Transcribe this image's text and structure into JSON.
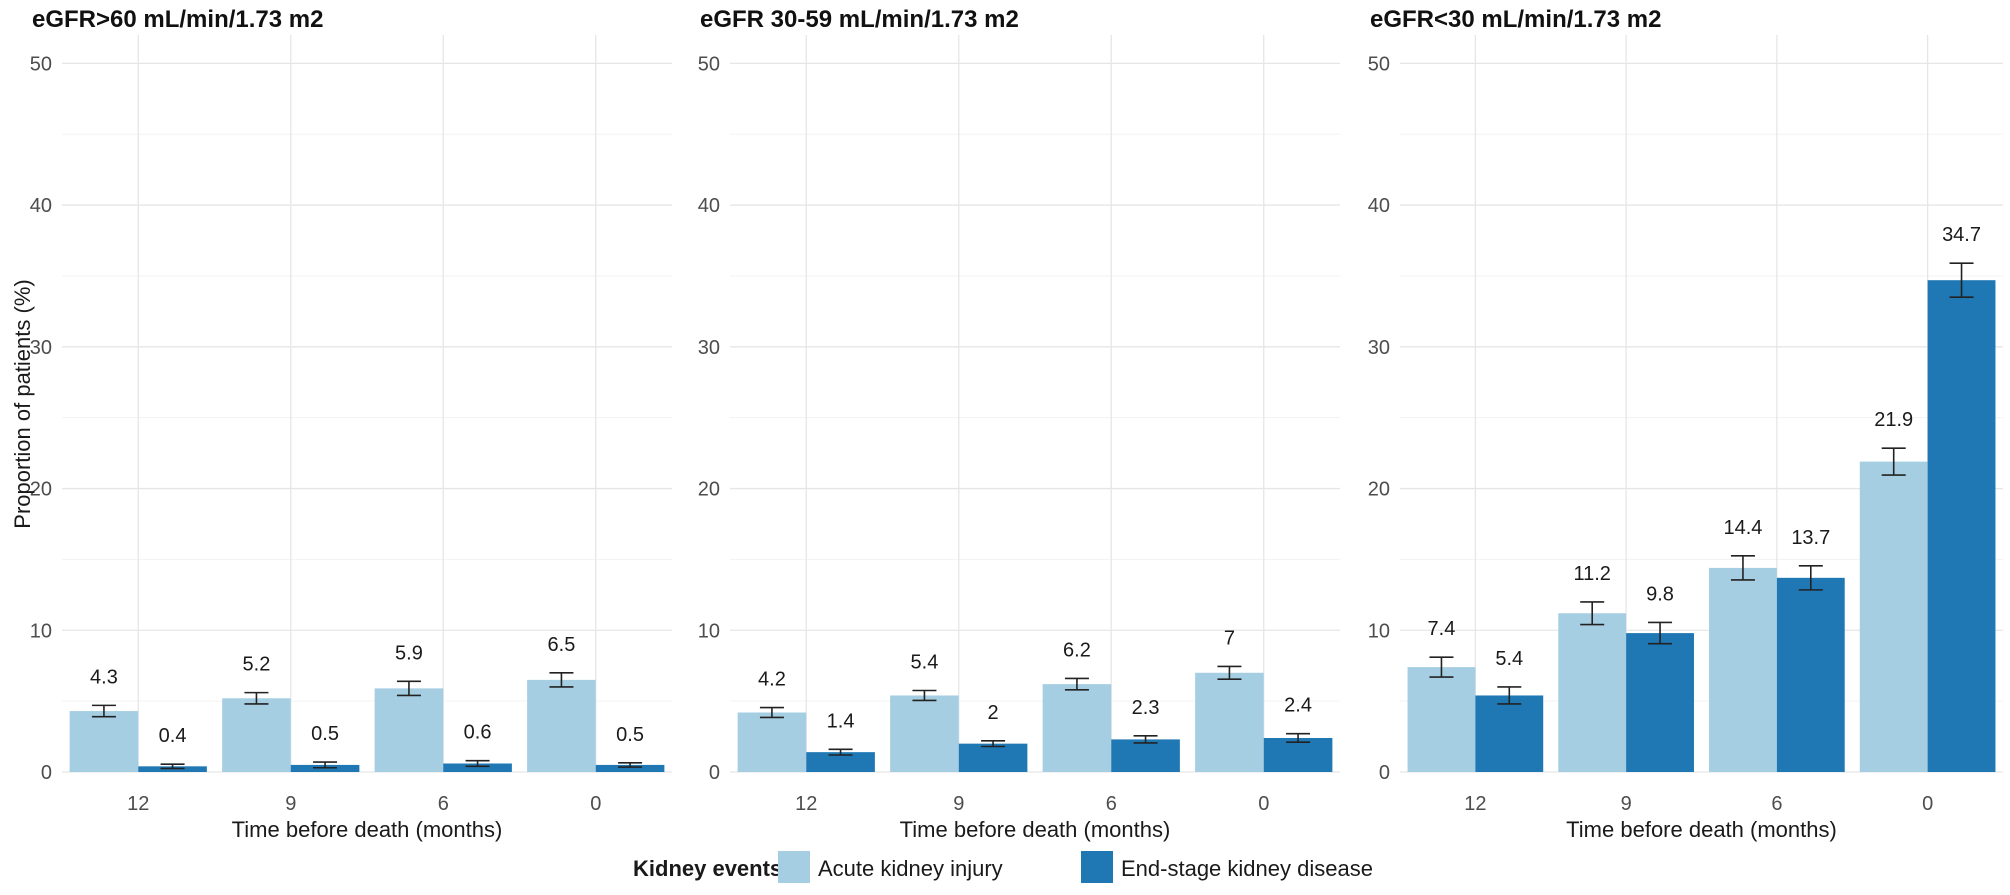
{
  "chart_data": {
    "type": "bar",
    "ylabel": "Proportion of patients (%)",
    "xlabel": "Time before death (months)",
    "ylim": [
      0,
      52
    ],
    "yticks": [
      0,
      10,
      20,
      30,
      40,
      50
    ],
    "categories": [
      "12",
      "9",
      "6",
      "0"
    ],
    "grid": true,
    "legend": {
      "title": "Kidney events",
      "position": "bottom",
      "items": [
        {
          "name": "Acute kidney injury",
          "color": "#a6cee3"
        },
        {
          "name": "End-stage kidney disease",
          "color": "#1f78b4"
        }
      ]
    },
    "panels": [
      {
        "title": "eGFR>60 mL/min/1.73 m2",
        "series": [
          {
            "name": "Acute kidney injury",
            "color": "#a6cee3",
            "values": [
              4.3,
              5.2,
              5.9,
              6.5
            ],
            "labels": [
              "4.3",
              "5.2",
              "5.9",
              "6.5"
            ],
            "err": [
              0.4,
              0.4,
              0.5,
              0.5
            ]
          },
          {
            "name": "End-stage kidney disease",
            "color": "#1f78b4",
            "values": [
              0.4,
              0.5,
              0.6,
              0.5
            ],
            "labels": [
              "0.4",
              "0.5",
              "0.6",
              "0.5"
            ],
            "err": [
              0.15,
              0.2,
              0.2,
              0.15
            ]
          }
        ]
      },
      {
        "title": "eGFR 30-59 mL/min/1.73 m2",
        "series": [
          {
            "name": "Acute kidney injury",
            "color": "#a6cee3",
            "values": [
              4.2,
              5.4,
              6.2,
              7.0
            ],
            "labels": [
              "4.2",
              "5.4",
              "6.2",
              "7"
            ],
            "err": [
              0.35,
              0.35,
              0.4,
              0.45
            ]
          },
          {
            "name": "End-stage kidney disease",
            "color": "#1f78b4",
            "values": [
              1.4,
              2.0,
              2.3,
              2.4
            ],
            "labels": [
              "1.4",
              "2",
              "2.3",
              "2.4"
            ],
            "err": [
              0.2,
              0.2,
              0.25,
              0.3
            ]
          }
        ]
      },
      {
        "title": "eGFR<30 mL/min/1.73 m2",
        "series": [
          {
            "name": "Acute kidney injury",
            "color": "#a6cee3",
            "values": [
              7.4,
              11.2,
              14.4,
              21.9
            ],
            "labels": [
              "7.4",
              "11.2",
              "14.4",
              "21.9"
            ],
            "err": [
              0.7,
              0.8,
              0.85,
              0.95
            ]
          },
          {
            "name": "End-stage kidney disease",
            "color": "#1f78b4",
            "values": [
              5.4,
              9.8,
              13.7,
              34.7
            ],
            "labels": [
              "5.4",
              "9.8",
              "13.7",
              "34.7"
            ],
            "err": [
              0.6,
              0.75,
              0.85,
              1.2
            ]
          }
        ]
      }
    ]
  }
}
